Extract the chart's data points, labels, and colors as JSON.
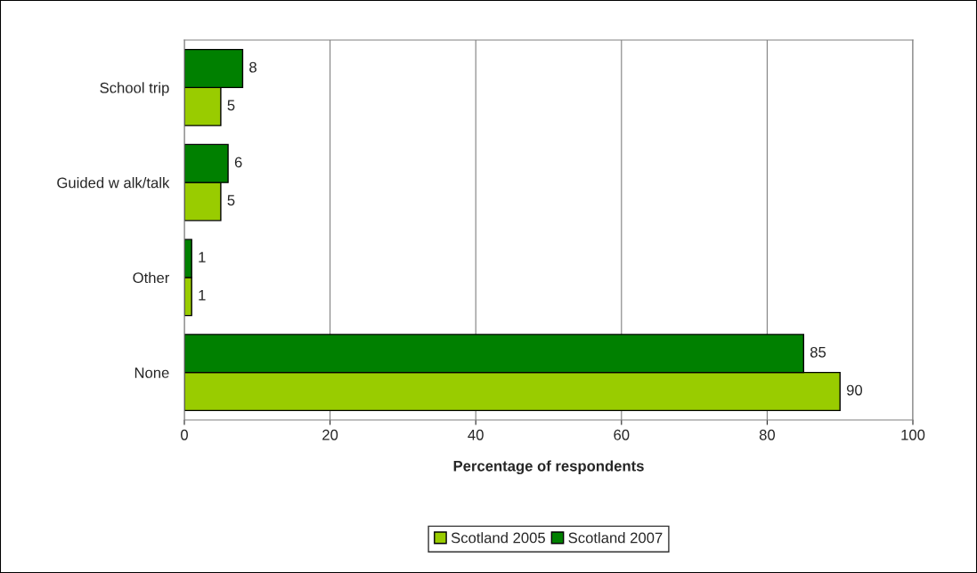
{
  "chart_data": {
    "type": "bar",
    "orientation": "horizontal",
    "xlabel": "Percentage of respondents",
    "categories": [
      "School trip",
      "Guided w alk/talk",
      "Other",
      "None"
    ],
    "series": [
      {
        "name": "Scotland 2005",
        "color": "#99cc00",
        "values": [
          5,
          5,
          1,
          90
        ]
      },
      {
        "name": "Scotland 2007",
        "color": "#008000",
        "values": [
          8,
          6,
          1,
          85
        ]
      }
    ],
    "xlim": [
      0,
      100
    ],
    "xticks": [
      0,
      20,
      40,
      60,
      80,
      100
    ],
    "grid": "x",
    "legend": "bottom",
    "data_labels": true
  }
}
